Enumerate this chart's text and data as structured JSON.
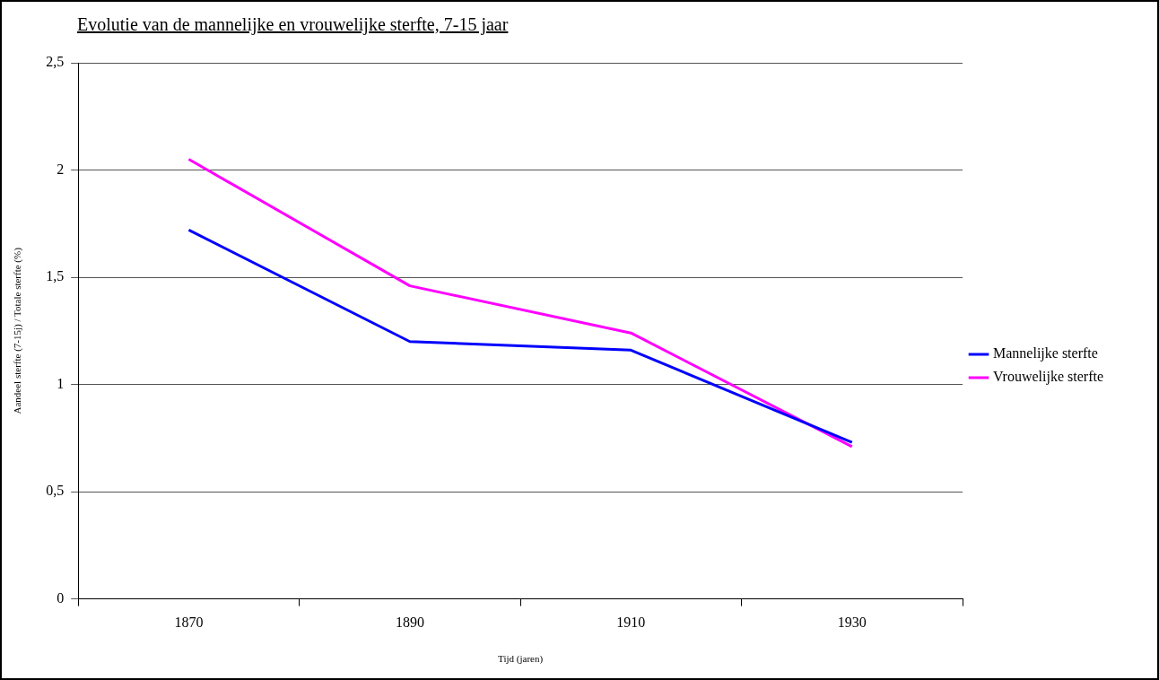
{
  "chart_data": {
    "type": "line",
    "title": "Evolutie van de mannelijke en vrouwelijke sterfte, 7-15 jaar",
    "xlabel": "Tijd (jaren)",
    "ylabel": "Aandeel sterfte (7-15j) / Totale sterfte (%)",
    "categories": [
      "1870",
      "1890",
      "1910",
      "1930"
    ],
    "series": [
      {
        "name": "Mannelijke sterfte",
        "color": "#0000ff",
        "values": [
          1.72,
          1.2,
          1.16,
          0.73
        ]
      },
      {
        "name": "Vrouwelijke sterfte",
        "color": "#ff00ff",
        "values": [
          2.05,
          1.46,
          1.24,
          0.71
        ]
      }
    ],
    "ylim": [
      0,
      2.5
    ],
    "yticks": [
      0,
      {
        "value": 0.5,
        "label": "0,5"
      },
      1,
      {
        "value": 1.5,
        "label": "1,5"
      },
      2,
      {
        "value": 2.5,
        "label": "2,5"
      }
    ],
    "grid": "y",
    "legend": "right",
    "marker": "none",
    "line_style": "solid"
  }
}
